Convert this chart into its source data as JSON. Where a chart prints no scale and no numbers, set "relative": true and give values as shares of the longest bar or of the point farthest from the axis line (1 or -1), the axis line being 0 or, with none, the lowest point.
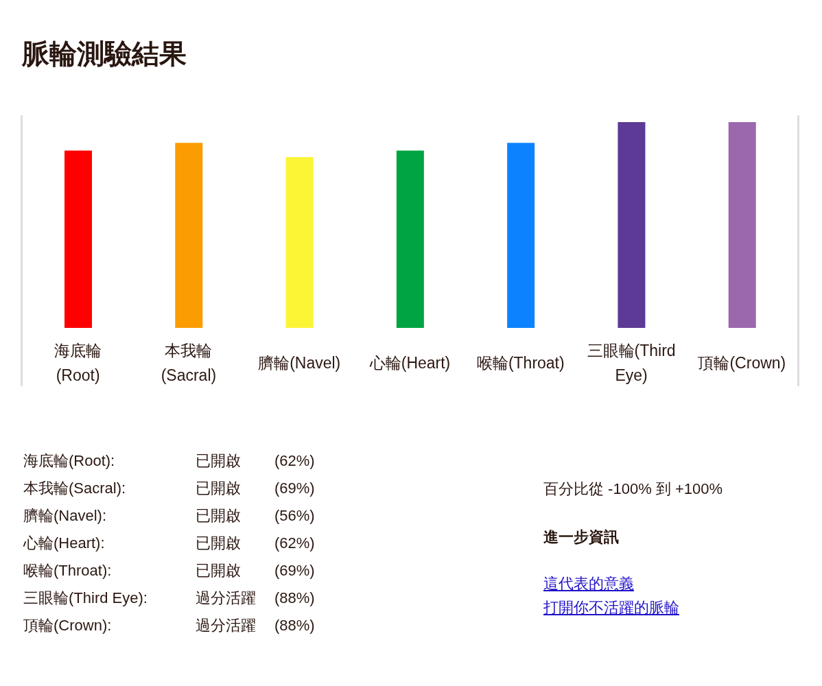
{
  "chart_data": {
    "type": "bar",
    "title": "脈輪測驗結果",
    "categories": [
      "海底輪(Root)",
      "本我輪(Sacral)",
      "臍輪(Navel)",
      "心輪(Heart)",
      "喉輪(Throat)",
      "三眼輪(Third Eye)",
      "頂輪(Crown)"
    ],
    "values": [
      0.862,
      0.899,
      0.83,
      0.862,
      0.899,
      1,
      1
    ],
    "colors": [
      "#fe0000",
      "#fb9c00",
      "#fbf536",
      "#00a442",
      "#0d82ff",
      "#5d3a95",
      "#9b67ad"
    ],
    "relative": true,
    "annotations": [
      "海底輪(Root):",
      "已開啟",
      "(62%)",
      "本我輪(Sacral):",
      "已開啟",
      "(69%)",
      "臍輪(Navel):",
      "已開啟",
      "(56%)",
      "心輪(Heart):",
      "已開啟",
      "(62%)",
      "喉輪(Throat):",
      "已開啟",
      "(69%)",
      "三眼輪(Third Eye):",
      "過分活躍",
      "(88%)",
      "頂輪(Crown):",
      "過分活躍",
      "(88%)",
      "百分比從 -100% 到 +100%",
      "進一步資訊",
      "這代表的意義",
      "打開你不活躍的脈輪"
    ]
  }
}
